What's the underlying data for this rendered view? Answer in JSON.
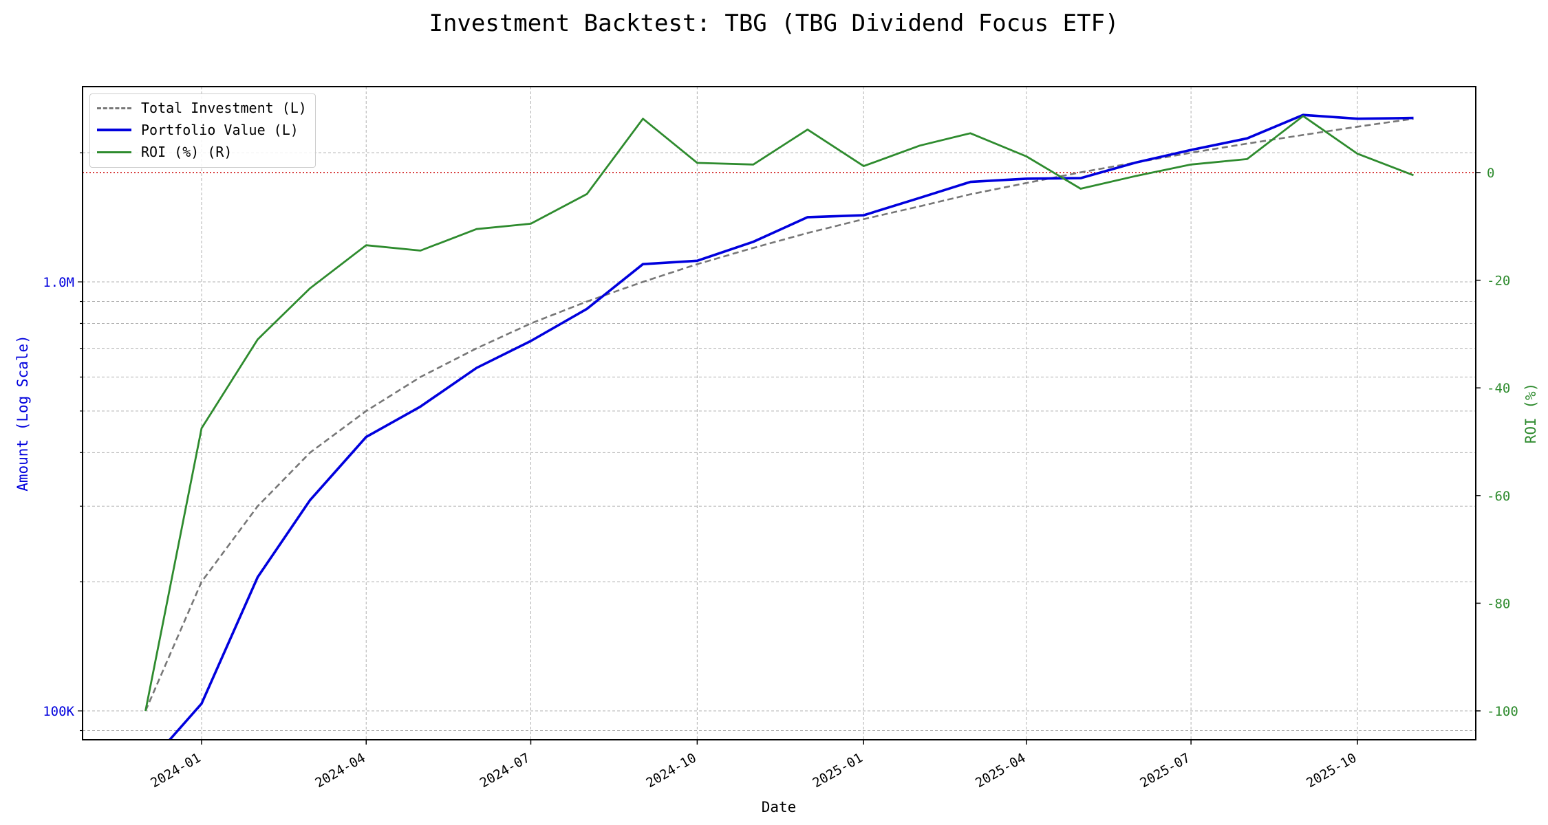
{
  "title": "Investment Backtest: TBG (TBG Dividend Focus ETF)",
  "chart_data": {
    "type": "line",
    "title": "Investment Backtest: TBG (TBG Dividend Focus ETF)",
    "xlabel": "Date",
    "ylabel_left": "Amount (Log Scale)",
    "ylabel_right": "ROI (%)",
    "left_scale": "log",
    "grid": true,
    "legend_position": "top-left",
    "x_ticks": [
      "2024-01",
      "2024-04",
      "2024-07",
      "2024-10",
      "2025-01",
      "2025-04",
      "2025-07",
      "2025-10"
    ],
    "left_y_ticks": [
      {
        "value": 100000,
        "label": "100K"
      },
      {
        "value": 1000000,
        "label": "1.0M"
      }
    ],
    "right_y_ticks": [
      0,
      -20,
      -40,
      -60,
      -80,
      -100
    ],
    "right_ylim": [
      -105,
      16
    ],
    "reference_line": {
      "axis": "right",
      "value": 0,
      "color": "#cc0000",
      "style": "dotted"
    },
    "colors": {
      "total": "#777777",
      "portfolio": "#0000dd",
      "roi": "#2e8b2e",
      "left_axis": "#0000dd",
      "right_axis": "#2e8b2e"
    },
    "x": [
      "2023-12-01",
      "2024-01-01",
      "2024-02-01",
      "2024-03-01",
      "2024-04-01",
      "2024-05-01",
      "2024-06-01",
      "2024-07-01",
      "2024-08-01",
      "2024-09-01",
      "2024-10-01",
      "2024-11-01",
      "2024-12-01",
      "2025-01-01",
      "2025-02-01",
      "2025-03-01",
      "2025-04-01",
      "2025-05-01",
      "2025-06-01",
      "2025-07-01",
      "2025-08-01",
      "2025-09-01",
      "2025-10-01",
      "2025-11-01"
    ],
    "series": [
      {
        "name": "Total Investment (L)",
        "axis": "left",
        "values": [
          100000,
          200000,
          300000,
          400000,
          500000,
          600000,
          700000,
          800000,
          900000,
          1000000,
          1100000,
          1200000,
          1300000,
          1400000,
          1500000,
          1600000,
          1700000,
          1800000,
          1900000,
          2000000,
          2100000,
          2200000,
          2300000,
          2400000
        ]
      },
      {
        "name": "Portfolio Value (L)",
        "axis": "left",
        "values": [
          0,
          104000,
          205000,
          310000,
          435000,
          512000,
          630000,
          728000,
          865000,
          1100000,
          1120000,
          1240000,
          1415000,
          1430000,
          1570000,
          1710000,
          1740000,
          1745000,
          1900000,
          2030000,
          2160000,
          2450000,
          2400000,
          2410000
        ]
      },
      {
        "name": "ROI (%) (R)",
        "axis": "right",
        "values": [
          -100,
          -47.5,
          -31,
          -21.5,
          -13.5,
          -14.5,
          -10.5,
          -9.5,
          -4,
          10,
          1.8,
          1.5,
          8,
          1.2,
          5,
          7.3,
          3,
          -3,
          -0.6,
          1.5,
          2.5,
          10.5,
          3.5,
          -0.5
        ]
      }
    ]
  }
}
